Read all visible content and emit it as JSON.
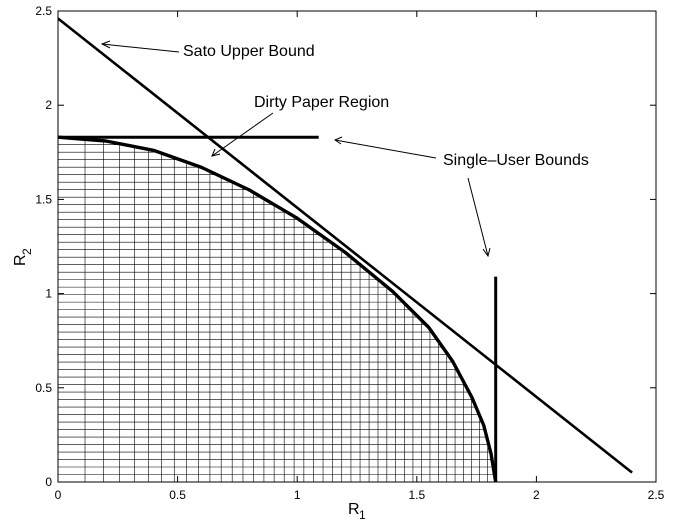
{
  "chart_data": {
    "type": "line",
    "xlabel": {
      "main": "R",
      "sub": "1"
    },
    "ylabel": {
      "main": "R",
      "sub": "2"
    },
    "xlim": [
      0,
      2.5
    ],
    "ylim": [
      0,
      2.5
    ],
    "xticks": [
      0,
      0.5,
      1,
      1.5,
      2,
      2.5
    ],
    "xtick_labels": [
      "0",
      "0.5",
      "1",
      "1.5",
      "2",
      "2.5"
    ],
    "yticks": [
      0,
      0.5,
      1,
      1.5,
      2,
      2.5
    ],
    "ytick_labels": [
      "0",
      "0.5",
      "1",
      "1.5",
      "2",
      "2.5"
    ],
    "grid": false,
    "series": [
      {
        "id": "sato",
        "x": [
          0,
          2.4
        ],
        "y": [
          2.46,
          0.05
        ]
      },
      {
        "id": "single-user-r2",
        "x": [
          0,
          1.09
        ],
        "y": [
          1.83,
          1.83
        ]
      },
      {
        "id": "single-user-r1",
        "x": [
          1.83,
          1.83
        ],
        "y": [
          0,
          1.09
        ]
      },
      {
        "id": "dirty-paper",
        "x": [
          0,
          0.2,
          0.4,
          0.6,
          0.8,
          1.0,
          1.2,
          1.4,
          1.55,
          1.65,
          1.73,
          1.78,
          1.81,
          1.83
        ],
        "y": [
          1.83,
          1.81,
          1.76,
          1.67,
          1.55,
          1.4,
          1.22,
          1.01,
          0.82,
          0.64,
          0.45,
          0.3,
          0.15,
          0
        ]
      }
    ],
    "annotations": [
      {
        "text": "Sato Upper Bound",
        "target": [
          0.15,
          2.3
        ]
      },
      {
        "text": "Dirty Paper Region",
        "target": [
          0.6,
          1.7
        ]
      },
      {
        "text": "Single–User Bounds",
        "target": [
          1.09,
          1.83
        ]
      },
      {
        "text": "Single–User Bounds",
        "target": [
          1.8,
          1.31
        ]
      }
    ]
  }
}
